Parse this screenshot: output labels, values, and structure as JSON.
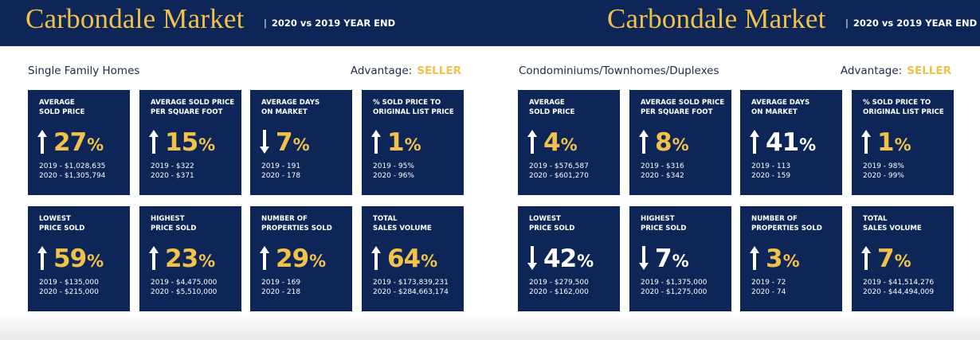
{
  "panels": [
    {
      "brand": "Carbondale Market",
      "separator": "|",
      "subtitle": "2020 vs 2019 YEAR END",
      "category": "Single Family Homes",
      "advantage_label": "Advantage:",
      "advantage_value": "SELLER",
      "cards": [
        {
          "label_line1": "AVERAGE",
          "label_line2": "SOLD PRICE",
          "direction": "up",
          "value": "27",
          "symbol": "%",
          "color": "gold",
          "line1": "2019 - $1,028,635",
          "line2": "2020 - $1,305,794"
        },
        {
          "label_line1": "AVERAGE SOLD PRICE",
          "label_line2": "PER SQUARE FOOT",
          "direction": "up",
          "value": "15",
          "symbol": "%",
          "color": "gold",
          "line1": "2019 - $322",
          "line2": "2020 - $371"
        },
        {
          "label_line1": "AVERAGE DAYS",
          "label_line2": "ON MARKET",
          "direction": "down",
          "value": "7",
          "symbol": "%",
          "color": "gold",
          "line1": "2019 - 191",
          "line2": "2020 - 178"
        },
        {
          "label_line1": "% SOLD PRICE TO",
          "label_line2": "ORIGINAL LIST PRICE",
          "direction": "up",
          "value": "1",
          "symbol": "%",
          "color": "gold",
          "line1": "2019 - 95%",
          "line2": "2020 - 96%"
        },
        {
          "label_line1": "LOWEST",
          "label_line2": "PRICE SOLD",
          "direction": "up",
          "value": "59",
          "symbol": "%",
          "color": "gold",
          "line1": "2019 - $135,000",
          "line2": "2020 - $215,000"
        },
        {
          "label_line1": "HIGHEST",
          "label_line2": "PRICE SOLD",
          "direction": "up",
          "value": "23",
          "symbol": "%",
          "color": "gold",
          "line1": "2019 - $4,475,000",
          "line2": "2020 - $5,510,000"
        },
        {
          "label_line1": "NUMBER OF",
          "label_line2": "PROPERTIES SOLD",
          "direction": "up",
          "value": "29",
          "symbol": "%",
          "color": "gold",
          "line1": "2019 - 169",
          "line2": "2020 - 218"
        },
        {
          "label_line1": "TOTAL",
          "label_line2": "SALES VOLUME",
          "direction": "up",
          "value": "64",
          "symbol": "%",
          "color": "gold",
          "line1": "2019 - $173,839,231",
          "line2": "2020 - $284,663,174"
        }
      ]
    },
    {
      "brand": "Carbondale Market",
      "separator": "|",
      "subtitle": "2020 vs 2019 YEAR END",
      "category": "Condominiums/Townhomes/Duplexes",
      "advantage_label": "Advantage:",
      "advantage_value": "SELLER",
      "cards": [
        {
          "label_line1": "AVERAGE",
          "label_line2": "SOLD PRICE",
          "direction": "up",
          "value": "4",
          "symbol": "%",
          "color": "gold",
          "line1": "2019 - $576,587",
          "line2": "2020 - $601,270"
        },
        {
          "label_line1": "AVERAGE SOLD PRICE",
          "label_line2": "PER SQUARE FOOT",
          "direction": "up",
          "value": "8",
          "symbol": "%",
          "color": "gold",
          "line1": "2019 - $316",
          "line2": "2020 - $342"
        },
        {
          "label_line1": "AVERAGE DAYS",
          "label_line2": "ON MARKET",
          "direction": "up",
          "value": "41",
          "symbol": "%",
          "color": "white",
          "line1": "2019 - 113",
          "line2": "2020 - 159"
        },
        {
          "label_line1": "% SOLD PRICE TO",
          "label_line2": "ORIGINAL LIST PRICE",
          "direction": "up",
          "value": "1",
          "symbol": "%",
          "color": "gold",
          "line1": "2019 - 98%",
          "line2": "2020 - 99%"
        },
        {
          "label_line1": "LOWEST",
          "label_line2": "PRICE SOLD",
          "direction": "down",
          "value": "42",
          "symbol": "%",
          "color": "white",
          "line1": "2019 - $279,500",
          "line2": "2020 - $162,000"
        },
        {
          "label_line1": "HIGHEST",
          "label_line2": "PRICE SOLD",
          "direction": "down",
          "value": "7",
          "symbol": "%",
          "color": "white",
          "line1": "2019 - $1,375,000",
          "line2": "2020 - $1,275,000"
        },
        {
          "label_line1": "NUMBER OF",
          "label_line2": "PROPERTIES SOLD",
          "direction": "up",
          "value": "3",
          "symbol": "%",
          "color": "gold",
          "line1": "2019 - 72",
          "line2": "2020 - 74"
        },
        {
          "label_line1": "TOTAL",
          "label_line2": "SALES VOLUME",
          "direction": "up",
          "value": "7",
          "symbol": "%",
          "color": "gold",
          "line1": "2019 - $41,514,276",
          "line2": "2020 - $44,494,009"
        }
      ]
    }
  ],
  "colors": {
    "navy": "#0d2657",
    "gold": "#f2c14a",
    "white": "#ffffff",
    "text": "#1e2a45"
  }
}
